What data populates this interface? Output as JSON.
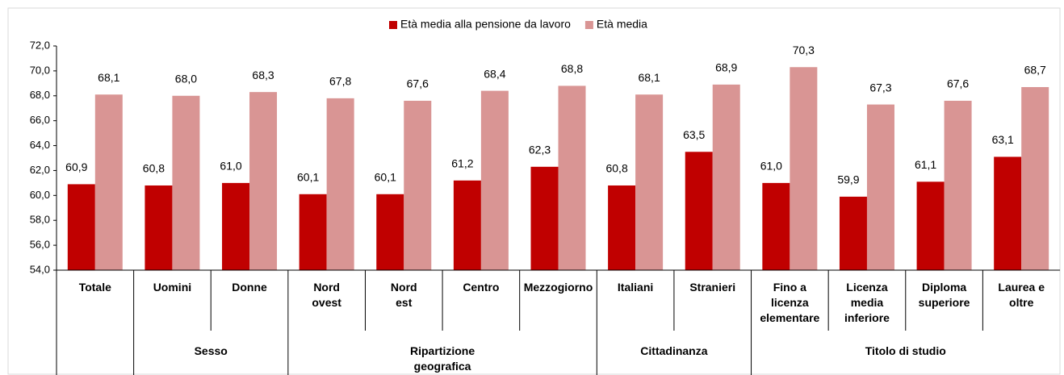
{
  "chart_data": {
    "type": "bar",
    "categories": [
      [
        "Totale"
      ],
      [
        "Uomini"
      ],
      [
        "Donne"
      ],
      [
        "Nord",
        "ovest"
      ],
      [
        "Nord",
        "est"
      ],
      [
        "Centro"
      ],
      [
        "Mezzogiorno"
      ],
      [
        "Italiani"
      ],
      [
        "Stranieri"
      ],
      [
        "Fino a",
        "licenza",
        "elementare"
      ],
      [
        "Licenza",
        "media",
        "inferiore"
      ],
      [
        "Diploma",
        "superiore"
      ],
      [
        "Laurea e",
        "oltre"
      ]
    ],
    "groups": [
      {
        "label": null,
        "count": 1
      },
      {
        "label": [
          "Sesso"
        ],
        "count": 2
      },
      {
        "label": [
          "Ripartizione",
          "geografica"
        ],
        "count": 4
      },
      {
        "label": [
          "Cittadinanza"
        ],
        "count": 2
      },
      {
        "label": [
          "Titolo di studio"
        ],
        "count": 4
      }
    ],
    "series": [
      {
        "name": "Età media alla pensione da lavoro",
        "color": "#c00000",
        "values": [
          60.9,
          60.8,
          61.0,
          60.1,
          60.1,
          61.2,
          62.3,
          60.8,
          63.5,
          61.0,
          59.9,
          61.1,
          63.1
        ],
        "value_labels": [
          "60,9",
          "60,8",
          "61,0",
          "60,1",
          "60,1",
          "61,2",
          "62,3",
          "60,8",
          "63,5",
          "61,0",
          "59,9",
          "61,1",
          "63,1"
        ]
      },
      {
        "name": "Età media",
        "color": "#d99594",
        "values": [
          68.1,
          68.0,
          68.3,
          67.8,
          67.6,
          68.4,
          68.8,
          68.1,
          68.9,
          70.3,
          67.3,
          67.6,
          68.7
        ],
        "value_labels": [
          "68,1",
          "68,0",
          "68,3",
          "67,8",
          "67,6",
          "68,4",
          "68,8",
          "68,1",
          "68,9",
          "70,3",
          "67,3",
          "67,6",
          "68,7"
        ]
      }
    ],
    "ylim": [
      54,
      72
    ],
    "yticks": [
      {
        "value": 54,
        "label": "54,0"
      },
      {
        "value": 56,
        "label": "56,0"
      },
      {
        "value": 58,
        "label": "58,0"
      },
      {
        "value": 60,
        "label": "60,0"
      },
      {
        "value": 62,
        "label": "62,0"
      },
      {
        "value": 64,
        "label": "64,0"
      },
      {
        "value": 66,
        "label": "66,0"
      },
      {
        "value": 68,
        "label": "68,0"
      },
      {
        "value": 70,
        "label": "70,0"
      },
      {
        "value": 72,
        "label": "72,0"
      }
    ],
    "legend": "top"
  }
}
